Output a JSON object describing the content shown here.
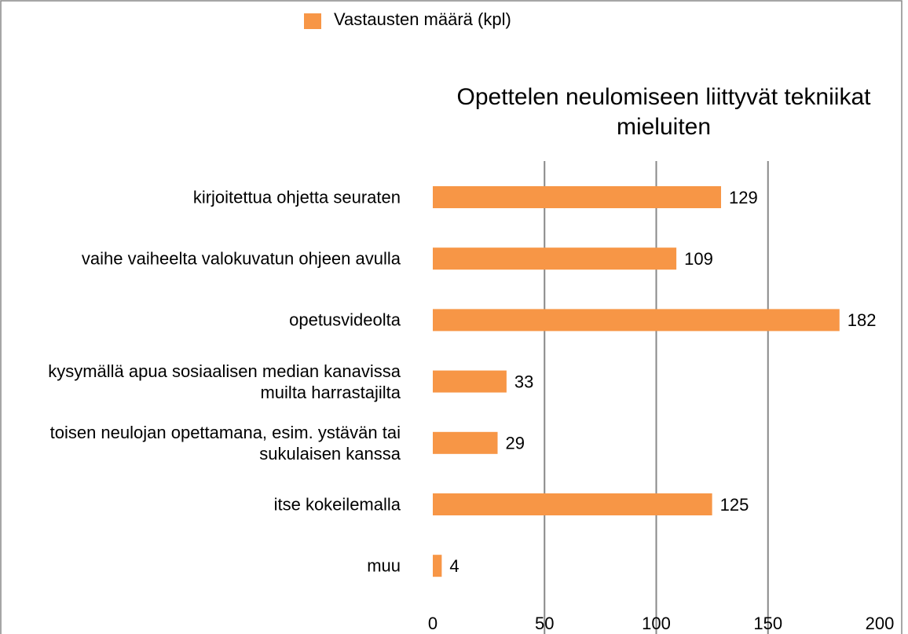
{
  "chart_data": {
    "type": "hbar",
    "title": "Opettelen neulomiseen liittyvät tekniikat mieluiten",
    "categories": [
      "kirjoitettua ohjetta seuraten",
      "vaihe vaiheelta valokuvatun ohjeen avulla",
      "opetusvideolta",
      "kysymällä apua sosiaalisen median kanavissa muilta harrastajilta",
      "toisen neulojan opettamana, esim. ystävän tai sukulaisen kanssa",
      "itse kokeilemalla",
      "muu"
    ],
    "series": [
      {
        "name": "Vastausten määrä (kpl)",
        "color": "#f79646",
        "values": [
          129,
          109,
          182,
          33,
          29,
          125,
          4
        ]
      }
    ],
    "xlim": [
      0,
      200
    ],
    "xticks": [
      0,
      50,
      100,
      150,
      200
    ],
    "grid": true,
    "legend": "top"
  }
}
